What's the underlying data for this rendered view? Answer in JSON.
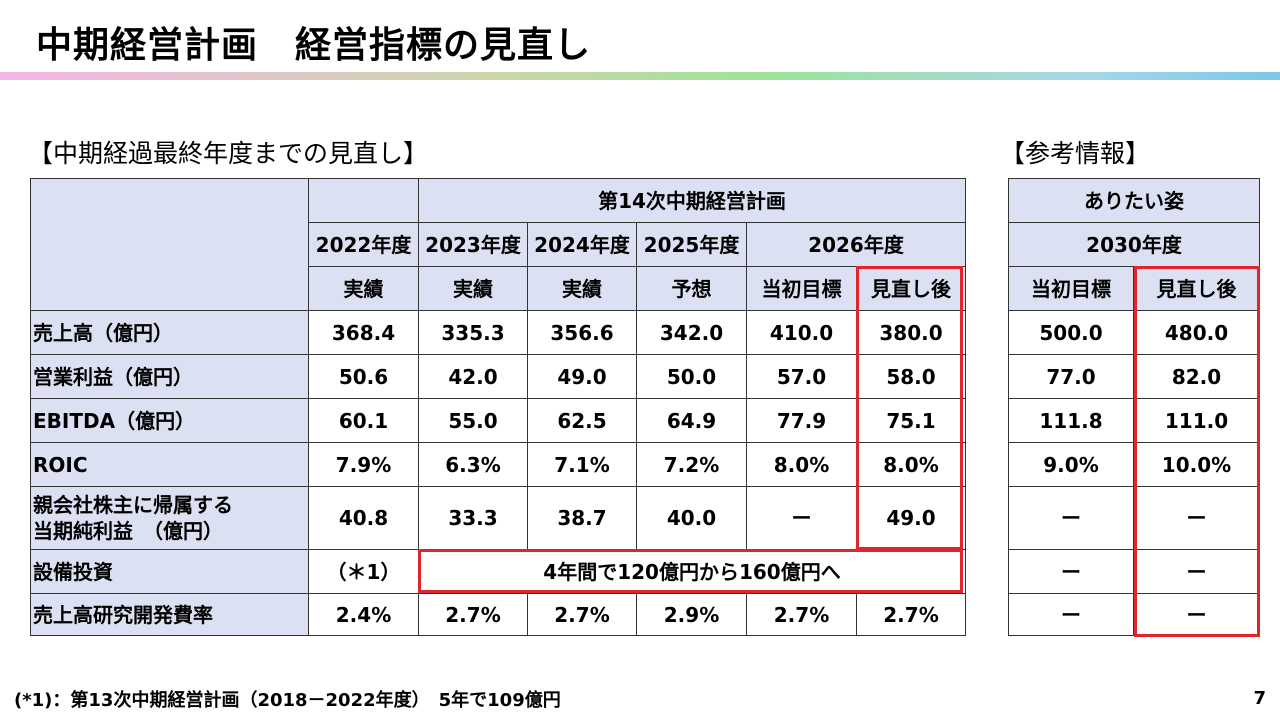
{
  "title": "中期経営計画　経営指標の見直し",
  "left_table": {
    "caption": "【中期経過最終年度までの見直し】",
    "plan_header": "第14次中期経営計画",
    "years": [
      "2022年度",
      "2023年度",
      "2024年度",
      "2025年度",
      "2026年度"
    ],
    "statuses": [
      "実績",
      "実績",
      "実績",
      "予想",
      "当初目標",
      "見直し後"
    ],
    "rows": [
      {
        "label": "売上高（億円）",
        "cells": [
          "368.4",
          "335.3",
          "356.6",
          "342.0",
          "410.0",
          "380.0"
        ]
      },
      {
        "label": "営業利益（億円）",
        "cells": [
          "50.6",
          "42.0",
          "49.0",
          "50.0",
          "57.0",
          "58.0"
        ]
      },
      {
        "label": "EBITDA（億円）",
        "cells": [
          "60.1",
          "55.0",
          "62.5",
          "64.9",
          "77.9",
          "75.1"
        ]
      },
      {
        "label": "ROIC",
        "cells": [
          "7.9%",
          "6.3%",
          "7.1%",
          "7.2%",
          "8.0%",
          "8.0%"
        ]
      },
      {
        "label": "親会社株主に帰属する\n当期純利益　（億円）",
        "cells": [
          "40.8",
          "33.3",
          "38.7",
          "40.0",
          "ー",
          "49.0"
        ]
      },
      {
        "label": "設備投資",
        "cells": [
          "（＊1）",
          "4年間で120億円から160億円へ"
        ]
      },
      {
        "label": "売上高研究開発費率",
        "cells": [
          "2.4%",
          "2.7%",
          "2.7%",
          "2.9%",
          "2.7%",
          "2.7%"
        ]
      }
    ]
  },
  "right_table": {
    "caption": "【参考情報】",
    "header": "ありたい姿",
    "year": "2030年度",
    "statuses": [
      "当初目標",
      "見直し後"
    ],
    "rows": [
      [
        "500.0",
        "480.0"
      ],
      [
        "77.0",
        "82.0"
      ],
      [
        "111.8",
        "111.0"
      ],
      [
        "9.0%",
        "10.0%"
      ],
      [
        "ー",
        "ー"
      ],
      [
        "ー",
        "ー"
      ],
      [
        "ー",
        "ー"
      ]
    ]
  },
  "footnote": "(*1)：第13次中期経営計画（2018－2022年度）　5年で109億円",
  "page_number": "7"
}
